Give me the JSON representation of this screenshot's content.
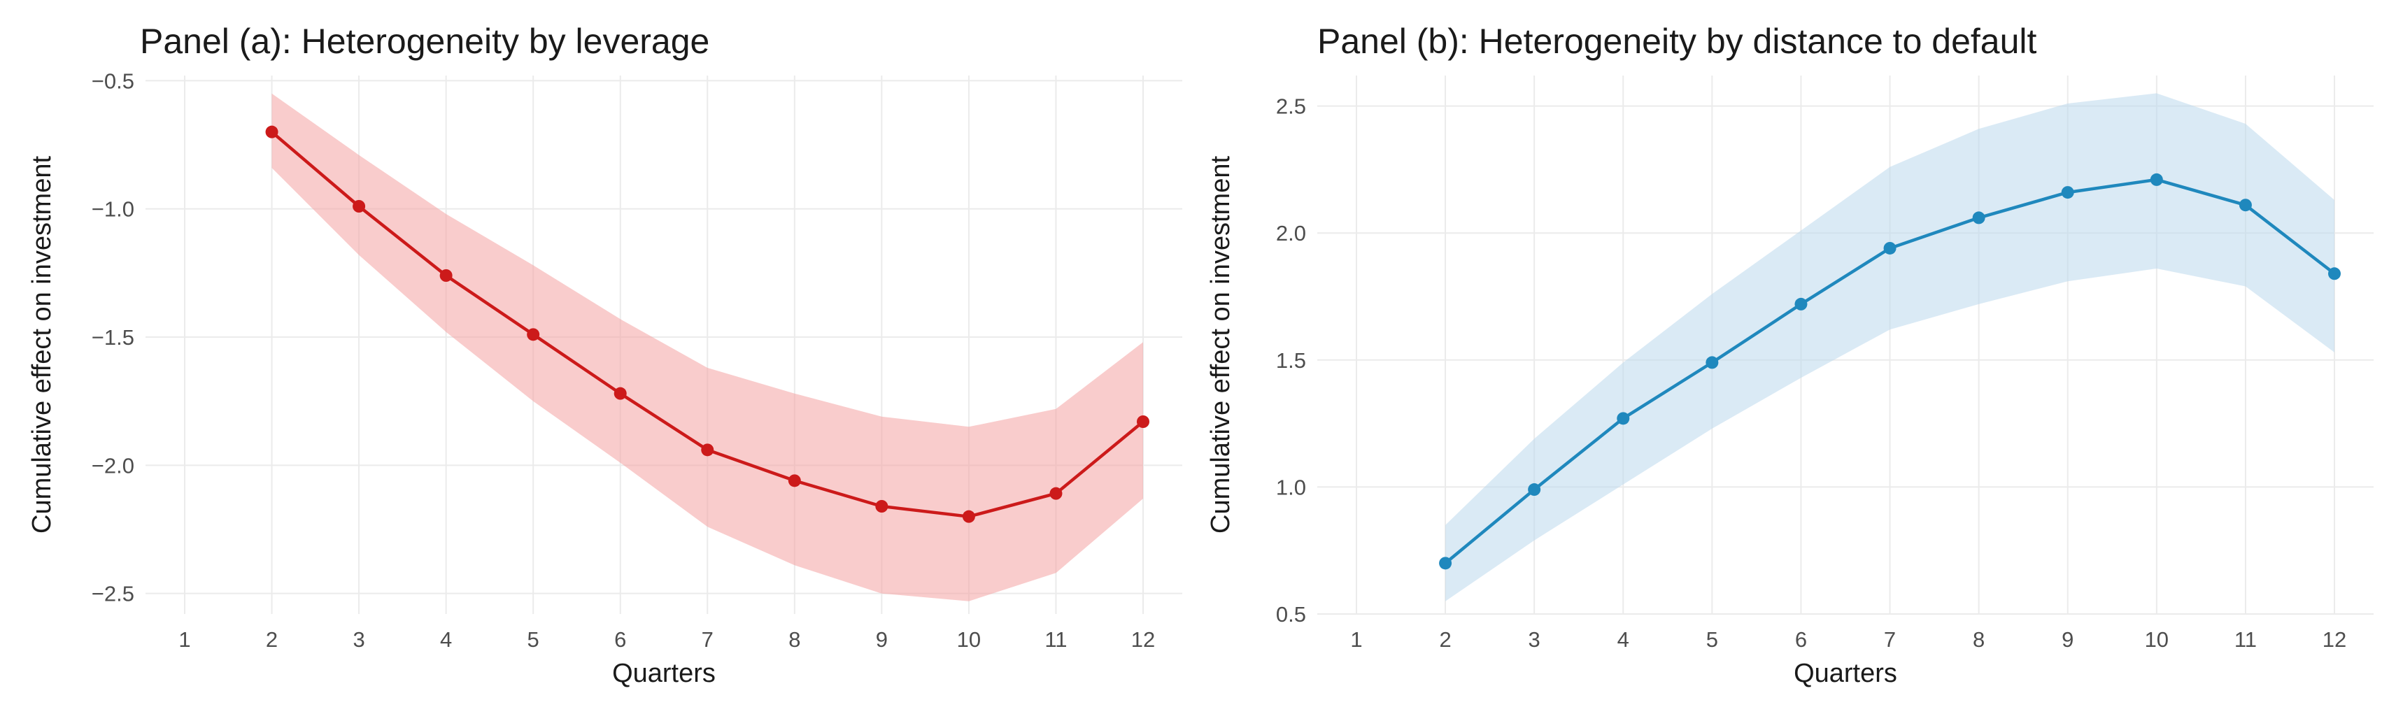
{
  "chart_data": [
    {
      "type": "line",
      "title": "Panel (a): Heterogeneity by leverage",
      "xlabel": "Quarters",
      "ylabel": "Cumulative effect on investment",
      "xlim": [
        1,
        12
      ],
      "ylim": [
        -2.58,
        -0.48
      ],
      "x_ticks": [
        1,
        2,
        3,
        4,
        5,
        6,
        7,
        8,
        9,
        10,
        11,
        12
      ],
      "y_ticks": [
        -0.5,
        -1.0,
        -1.5,
        -2.0,
        -2.5
      ],
      "y_tick_labels": [
        "−0.5",
        "−1.0",
        "−1.5",
        "−2.0",
        "−2.5"
      ],
      "grid": true,
      "color": "#cc1a1a",
      "band_color": "#f4a3a3",
      "series": [
        {
          "x": [
            2,
            3,
            4,
            5,
            6,
            7,
            8,
            9,
            10,
            11,
            12
          ],
          "values": [
            -0.7,
            -0.99,
            -1.26,
            -1.49,
            -1.72,
            -1.94,
            -2.06,
            -2.16,
            -2.2,
            -2.11,
            -1.83
          ],
          "lower": [
            -0.84,
            -1.18,
            -1.48,
            -1.75,
            -1.99,
            -2.24,
            -2.39,
            -2.5,
            -2.53,
            -2.42,
            -2.13
          ],
          "upper": [
            -0.55,
            -0.79,
            -1.02,
            -1.22,
            -1.43,
            -1.62,
            -1.72,
            -1.81,
            -1.85,
            -1.78,
            -1.52
          ]
        }
      ]
    },
    {
      "type": "line",
      "title": "Panel (b): Heterogeneity by distance to default",
      "xlabel": "Quarters",
      "ylabel": "Cumulative effect on investment",
      "xlim": [
        1,
        12
      ],
      "ylim": [
        0.5,
        2.62
      ],
      "x_ticks": [
        1,
        2,
        3,
        4,
        5,
        6,
        7,
        8,
        9,
        10,
        11,
        12
      ],
      "y_ticks": [
        0.5,
        1.0,
        1.5,
        2.0,
        2.5
      ],
      "y_tick_labels": [
        "0.5",
        "1.0",
        "1.5",
        "2.0",
        "2.5"
      ],
      "grid": true,
      "color": "#1f88bd",
      "band_color": "#bcd8ec",
      "series": [
        {
          "x": [
            2,
            3,
            4,
            5,
            6,
            7,
            8,
            9,
            10,
            11,
            12
          ],
          "values": [
            0.7,
            0.99,
            1.27,
            1.49,
            1.72,
            1.94,
            2.06,
            2.16,
            2.21,
            2.11,
            1.84
          ],
          "lower": [
            0.55,
            0.79,
            1.01,
            1.23,
            1.43,
            1.62,
            1.72,
            1.81,
            1.86,
            1.79,
            1.53
          ],
          "upper": [
            0.85,
            1.19,
            1.49,
            1.76,
            2.01,
            2.26,
            2.41,
            2.51,
            2.55,
            2.43,
            2.13
          ]
        }
      ]
    }
  ]
}
